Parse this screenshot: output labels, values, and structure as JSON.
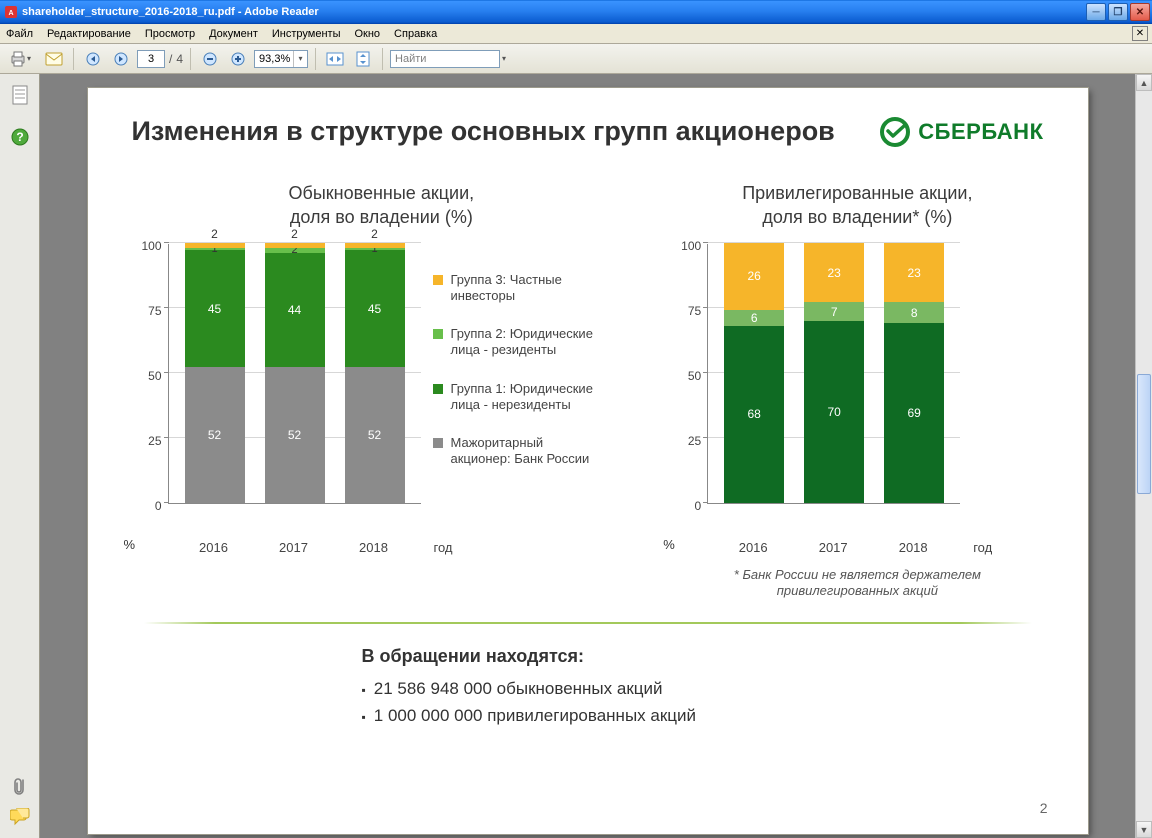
{
  "window": {
    "title": "shareholder_structure_2016-2018_ru.pdf - Adobe Reader"
  },
  "menu": {
    "file": "Файл",
    "edit": "Редактирование",
    "view": "Просмотр",
    "document": "Документ",
    "tools": "Инструменты",
    "window": "Окно",
    "help": "Справка"
  },
  "toolbar": {
    "page_current": "3",
    "page_sep": "/",
    "page_total": "4",
    "zoom": "93,3%",
    "find_placeholder": "Найти"
  },
  "slide": {
    "title": "Изменения в структуре основных групп акционеров",
    "brand": "СБЕРБАНК",
    "page_number": "2",
    "x_unit": "год",
    "y_unit": "%",
    "y_ticks": [
      0,
      25,
      50,
      75,
      100
    ],
    "colors": {
      "group3": "#f6b52a",
      "group2": "#68bf4b",
      "group1": "#2b8a1f",
      "group1_dark": "#0f6b23",
      "major": "#8b8b8b",
      "major_light": "#8b8b8b"
    },
    "chart_left": {
      "title": "Обыкновенные акции,\nдоля во владении  (%)",
      "categories": [
        "2016",
        "2017",
        "2018"
      ],
      "series": [
        {
          "key": "major",
          "color": "#8b8b8b",
          "values": [
            52,
            52,
            52
          ],
          "show_label": true
        },
        {
          "key": "group1",
          "color": "#2b8a1f",
          "values": [
            45,
            44,
            45
          ],
          "show_label": true
        },
        {
          "key": "group2",
          "color": "#68bf4b",
          "values": [
            1,
            2,
            1
          ],
          "show_label": true
        },
        {
          "key": "group3",
          "color": "#f6b52a",
          "values": [
            2,
            2,
            2
          ],
          "show_label": "top"
        }
      ]
    },
    "legend": [
      {
        "color": "#f6b52a",
        "text": "Группа 3: Частные инвесторы"
      },
      {
        "color": "#68bf4b",
        "text": "Группа 2: Юридические лица - резиденты"
      },
      {
        "color": "#2b8a1f",
        "text": "Группа 1: Юридические лица - нерезиденты"
      },
      {
        "color": "#8b8b8b",
        "text": "Мажоритарный акционер: Банк России"
      }
    ],
    "chart_right": {
      "title": "Привилегированные акции,\nдоля во владении* (%)",
      "categories": [
        "2016",
        "2017",
        "2018"
      ],
      "series": [
        {
          "key": "group1",
          "color": "#0f6b23",
          "values": [
            68,
            70,
            69
          ],
          "show_label": true
        },
        {
          "key": "group2",
          "color": "#7ab862",
          "values": [
            6,
            7,
            8
          ],
          "show_label": true
        },
        {
          "key": "group3",
          "color": "#f6b52a",
          "values": [
            26,
            23,
            23
          ],
          "show_label": true
        }
      ],
      "footnote": "* Банк России не является держателем\nпривилегированных акций"
    },
    "circulation": {
      "header": "В обращении находятся:",
      "lines": [
        "21 586 948 000 обыкновенных акций",
        "1 000 000 000   привилегированных акций"
      ]
    }
  }
}
